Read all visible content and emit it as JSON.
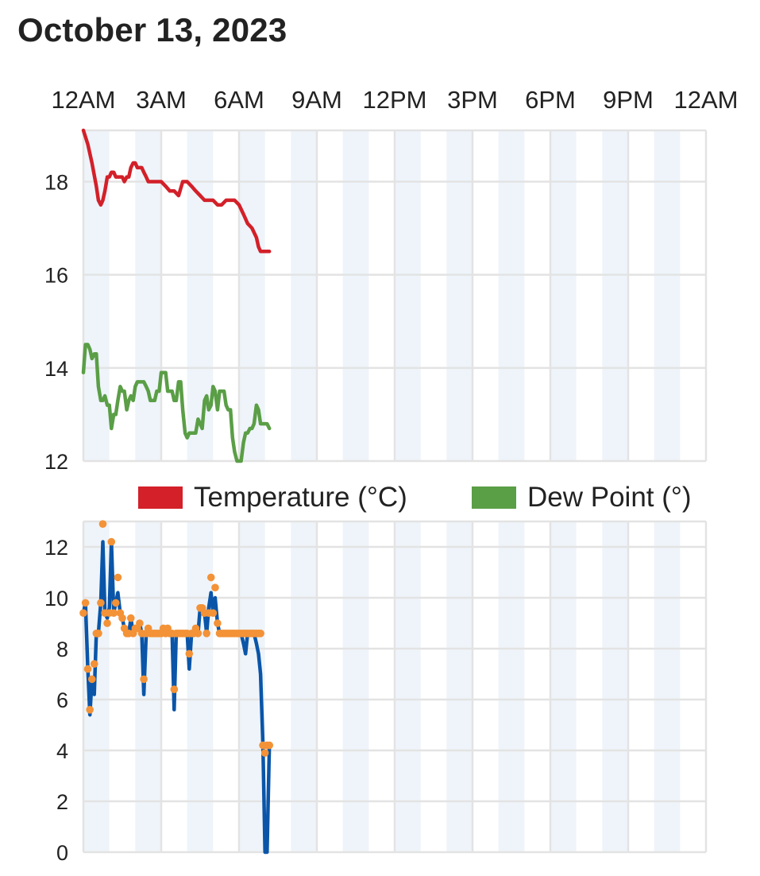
{
  "page": {
    "title": "October 13, 2023"
  },
  "chart_data": [
    {
      "type": "line",
      "x_tick_labels": [
        "12AM",
        "3AM",
        "6AM",
        "9AM",
        "12PM",
        "3PM",
        "6PM",
        "9PM",
        "12AM"
      ],
      "xlim_hours": [
        0,
        24
      ],
      "ylim": [
        12,
        19.1
      ],
      "y_ticks": [
        12,
        14,
        16,
        18
      ],
      "grid": true,
      "legend": "bottom",
      "series": [
        {
          "name": "Temperature (°C)",
          "color": "#d32029",
          "x_hours": [
            0,
            0.17,
            0.33,
            0.5,
            0.58,
            0.67,
            0.75,
            0.83,
            0.92,
            1.0,
            1.08,
            1.17,
            1.25,
            1.33,
            1.42,
            1.5,
            1.58,
            1.67,
            1.75,
            1.83,
            1.92,
            2.0,
            2.08,
            2.17,
            2.25,
            2.33,
            2.42,
            2.5,
            2.58,
            2.67,
            2.75,
            2.83,
            2.92,
            3.0,
            3.17,
            3.33,
            3.5,
            3.67,
            3.83,
            4.0,
            4.17,
            4.33,
            4.5,
            4.67,
            4.83,
            5.0,
            5.17,
            5.33,
            5.5,
            5.67,
            5.83,
            6.0,
            6.17,
            6.33,
            6.5,
            6.67,
            6.75,
            6.83,
            6.92,
            7.0,
            7.08,
            7.17
          ],
          "values": [
            19.1,
            18.8,
            18.4,
            17.9,
            17.6,
            17.5,
            17.6,
            17.8,
            18.1,
            18.1,
            18.2,
            18.2,
            18.1,
            18.1,
            18.1,
            18.1,
            18.0,
            18.1,
            18.1,
            18.3,
            18.4,
            18.4,
            18.3,
            18.3,
            18.3,
            18.2,
            18.1,
            18.0,
            18.0,
            18.0,
            18.0,
            18.0,
            18.0,
            18.0,
            17.9,
            17.8,
            17.8,
            17.7,
            18.0,
            18.0,
            17.9,
            17.8,
            17.7,
            17.6,
            17.6,
            17.6,
            17.5,
            17.5,
            17.6,
            17.6,
            17.6,
            17.5,
            17.3,
            17.1,
            17.0,
            16.8,
            16.6,
            16.5,
            16.5,
            16.5,
            16.5,
            16.5
          ]
        },
        {
          "name": "Dew Point (°)",
          "color": "#5a9e46",
          "x_hours": [
            0,
            0.08,
            0.17,
            0.25,
            0.33,
            0.42,
            0.5,
            0.58,
            0.67,
            0.75,
            0.83,
            0.92,
            1.0,
            1.08,
            1.17,
            1.25,
            1.33,
            1.42,
            1.5,
            1.58,
            1.67,
            1.75,
            1.83,
            1.92,
            2.0,
            2.08,
            2.17,
            2.25,
            2.33,
            2.42,
            2.5,
            2.58,
            2.67,
            2.75,
            2.83,
            2.92,
            3.0,
            3.08,
            3.17,
            3.25,
            3.33,
            3.42,
            3.5,
            3.58,
            3.67,
            3.75,
            3.83,
            3.92,
            4.0,
            4.08,
            4.17,
            4.25,
            4.33,
            4.42,
            4.5,
            4.58,
            4.67,
            4.75,
            4.83,
            4.92,
            5.0,
            5.08,
            5.17,
            5.25,
            5.33,
            5.42,
            5.5,
            5.58,
            5.67,
            5.75,
            5.83,
            5.92,
            6.0,
            6.08,
            6.17,
            6.25,
            6.33,
            6.42,
            6.5,
            6.58,
            6.67,
            6.75,
            6.83,
            6.92,
            7.0,
            7.08,
            7.17
          ],
          "values": [
            13.9,
            14.5,
            14.5,
            14.4,
            14.2,
            14.3,
            14.3,
            13.6,
            13.3,
            13.3,
            13.4,
            13.2,
            13.2,
            12.7,
            13.0,
            13.0,
            13.3,
            13.6,
            13.5,
            13.5,
            13.1,
            13.3,
            13.4,
            13.3,
            13.6,
            13.7,
            13.7,
            13.7,
            13.7,
            13.6,
            13.5,
            13.3,
            13.3,
            13.3,
            13.5,
            13.5,
            13.9,
            13.9,
            13.9,
            13.5,
            13.5,
            13.5,
            13.3,
            13.3,
            13.7,
            13.7,
            13.1,
            12.6,
            12.5,
            12.6,
            12.6,
            12.6,
            12.6,
            12.9,
            12.8,
            12.7,
            13.3,
            13.4,
            13.1,
            13.2,
            13.6,
            13.5,
            13.1,
            13.5,
            13.5,
            13.5,
            13.2,
            13.1,
            13.1,
            12.5,
            12.2,
            12.0,
            12.0,
            12.0,
            12.4,
            12.6,
            12.6,
            12.7,
            12.7,
            12.8,
            13.2,
            13.1,
            12.8,
            12.8,
            12.8,
            12.8,
            12.7
          ]
        }
      ]
    },
    {
      "type": "line",
      "x_tick_labels": [
        "12AM",
        "3AM",
        "6AM",
        "9AM",
        "12PM",
        "3PM",
        "6PM",
        "9PM",
        "12AM"
      ],
      "xlim_hours": [
        0,
        24
      ],
      "ylim": [
        0,
        13
      ],
      "y_ticks": [
        0,
        2,
        4,
        6,
        8,
        10,
        12
      ],
      "grid": true,
      "legend": "bottom",
      "series": [
        {
          "color": "#0a55a8",
          "x_hours": [
            0,
            0.08,
            0.17,
            0.25,
            0.33,
            0.42,
            0.5,
            0.58,
            0.67,
            0.75,
            0.83,
            0.92,
            1.0,
            1.08,
            1.17,
            1.25,
            1.33,
            1.42,
            1.5,
            1.58,
            1.67,
            1.75,
            1.83,
            1.92,
            2.0,
            2.08,
            2.17,
            2.25,
            2.33,
            2.42,
            2.5,
            2.58,
            2.67,
            2.75,
            2.83,
            2.92,
            3.0,
            3.08,
            3.17,
            3.25,
            3.33,
            3.42,
            3.5,
            3.58,
            3.67,
            3.75,
            3.83,
            3.92,
            4.0,
            4.08,
            4.17,
            4.25,
            4.33,
            4.42,
            4.5,
            4.58,
            4.67,
            4.75,
            4.83,
            4.92,
            5.0,
            5.08,
            5.17,
            5.25,
            5.33,
            5.42,
            5.5,
            5.58,
            5.67,
            5.75,
            5.83,
            5.92,
            6.0,
            6.08,
            6.17,
            6.25,
            6.33,
            6.42,
            6.5,
            6.58,
            6.67,
            6.75,
            6.83,
            6.92,
            7.0,
            7.08,
            7.17
          ],
          "values": [
            9.4,
            9.8,
            7.2,
            5.4,
            6.8,
            6.2,
            8.6,
            8.6,
            9.8,
            12.2,
            9.4,
            9.2,
            9.6,
            12.2,
            9.4,
            9.8,
            10.2,
            9.4,
            9.2,
            8.8,
            8.6,
            8.6,
            9.2,
            8.6,
            8.8,
            8.8,
            9.0,
            8.6,
            6.2,
            8.6,
            8.8,
            8.6,
            8.6,
            8.6,
            8.6,
            8.6,
            8.6,
            8.8,
            8.6,
            8.8,
            8.6,
            8.6,
            5.6,
            8.6,
            8.6,
            8.6,
            8.6,
            8.6,
            8.6,
            7.2,
            8.6,
            8.6,
            8.8,
            8.6,
            9.6,
            9.6,
            9.4,
            8.6,
            9.6,
            10.2,
            9.4,
            10.0,
            9.0,
            8.6,
            8.6,
            8.6,
            8.6,
            8.6,
            8.6,
            8.6,
            8.6,
            8.6,
            8.6,
            8.6,
            8.2,
            7.8,
            8.6,
            8.6,
            8.6,
            8.6,
            8.2,
            7.8,
            7.0,
            4.2,
            0.0,
            0.0,
            4.2
          ]
        },
        {
          "color": "#f39237",
          "x_hours": [
            0,
            0.08,
            0.17,
            0.25,
            0.33,
            0.42,
            0.5,
            0.58,
            0.67,
            0.75,
            0.83,
            0.92,
            1.0,
            1.08,
            1.17,
            1.25,
            1.33,
            1.42,
            1.5,
            1.58,
            1.67,
            1.75,
            1.83,
            1.92,
            2.0,
            2.08,
            2.17,
            2.25,
            2.33,
            2.42,
            2.5,
            2.58,
            2.67,
            2.75,
            2.83,
            2.92,
            3.0,
            3.08,
            3.17,
            3.25,
            3.33,
            3.42,
            3.5,
            3.58,
            3.67,
            3.75,
            3.83,
            3.92,
            4.0,
            4.08,
            4.17,
            4.25,
            4.33,
            4.42,
            4.5,
            4.58,
            4.67,
            4.75,
            4.83,
            4.92,
            5.0,
            5.08,
            5.17,
            5.25,
            5.33,
            5.42,
            5.5,
            5.58,
            5.67,
            5.75,
            5.83,
            5.92,
            6.0,
            6.08,
            6.17,
            6.25,
            6.33,
            6.42,
            6.5,
            6.58,
            6.67,
            6.75,
            6.83,
            6.92,
            7.0,
            7.08,
            7.17
          ],
          "values": [
            9.4,
            9.8,
            7.2,
            5.6,
            6.8,
            7.4,
            8.6,
            8.6,
            9.8,
            12.9,
            9.4,
            9.0,
            9.4,
            12.2,
            9.4,
            9.8,
            10.8,
            9.4,
            9.2,
            8.8,
            8.6,
            8.6,
            9.2,
            8.6,
            8.8,
            8.8,
            9.0,
            8.6,
            6.8,
            8.6,
            8.8,
            8.6,
            8.6,
            8.6,
            8.6,
            8.6,
            8.6,
            8.8,
            8.6,
            8.8,
            8.6,
            8.6,
            6.4,
            8.6,
            8.6,
            8.6,
            8.6,
            8.6,
            8.6,
            7.8,
            8.6,
            8.6,
            8.8,
            8.6,
            9.6,
            9.6,
            9.4,
            8.6,
            9.4,
            10.8,
            9.4,
            10.4,
            9.0,
            8.6,
            8.6,
            8.6,
            8.6,
            8.6,
            8.6,
            8.6,
            8.6,
            8.6,
            8.6,
            8.6,
            8.6,
            8.6,
            8.6,
            8.6,
            8.6,
            8.6,
            8.6,
            8.6,
            8.6,
            4.2,
            3.9,
            4.2,
            4.2
          ]
        }
      ]
    }
  ]
}
